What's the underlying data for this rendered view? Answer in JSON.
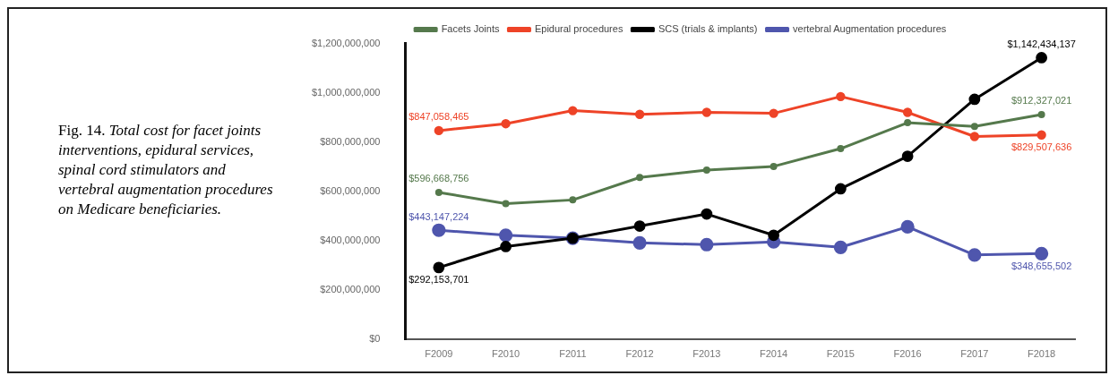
{
  "chart_data": {
    "type": "line",
    "title": "Fig. 14. Total cost for facet joints interventions, epidural services, spinal cord stimulators and vertebral augmentation procedures on Medicare beneficiaries.",
    "categories": [
      "F2009",
      "F2010",
      "F2011",
      "F2012",
      "F2013",
      "F2014",
      "F2015",
      "F2016",
      "F2017",
      "F2018"
    ],
    "series": [
      {
        "name": "Facets Joints",
        "color": "#55794c",
        "values": [
          596668756,
          551000000,
          566000000,
          657000000,
          687000000,
          702000000,
          774000000,
          879000000,
          864000000,
          912327021
        ],
        "value_labels": [
          "$596,668,756",
          null,
          null,
          null,
          null,
          null,
          null,
          null,
          null,
          "$912,327,021"
        ]
      },
      {
        "name": "Epidural procedures",
        "color": "#ee4327",
        "values": [
          847058465,
          875000000,
          928000000,
          913000000,
          921000000,
          917000000,
          985000000,
          921000000,
          823000000,
          829507636
        ],
        "value_labels": [
          "$847,058,465",
          null,
          null,
          null,
          null,
          null,
          null,
          null,
          null,
          "$829,507,636"
        ]
      },
      {
        "name": "SCS (trials & implants)",
        "color": "#000000",
        "values": [
          292153701,
          377000000,
          411000000,
          460000000,
          509000000,
          423000000,
          611000000,
          743000000,
          974000000,
          1142434137
        ],
        "value_labels": [
          "$292,153,701",
          null,
          null,
          null,
          null,
          null,
          null,
          null,
          null,
          "$1,142,434,137"
        ]
      },
      {
        "name": "vertebral Augmentation procedures",
        "color": "#4f56ad",
        "values": [
          443147224,
          423000000,
          411000000,
          392000000,
          385000000,
          396000000,
          374000000,
          457000000,
          343000000,
          348655502
        ],
        "value_labels": [
          "$443,147,224",
          null,
          null,
          null,
          null,
          null,
          null,
          null,
          null,
          "$348,655,502"
        ]
      }
    ],
    "ylim": [
      0,
      1200000000
    ],
    "yticks": [
      {
        "value": 0,
        "label": "$0"
      },
      {
        "value": 200000000,
        "label": "$200,000,000"
      },
      {
        "value": 400000000,
        "label": "$400,000,000"
      },
      {
        "value": 600000000,
        "label": "$600,000,000"
      },
      {
        "value": 800000000,
        "label": "$800,000,000"
      },
      {
        "value": 1000000000,
        "label": "$1,000,000,000"
      },
      {
        "value": 1200000000,
        "label": "$1,200,000,000"
      }
    ],
    "grid": false,
    "legend": "top",
    "marker": "circle",
    "line_style": "solid"
  }
}
